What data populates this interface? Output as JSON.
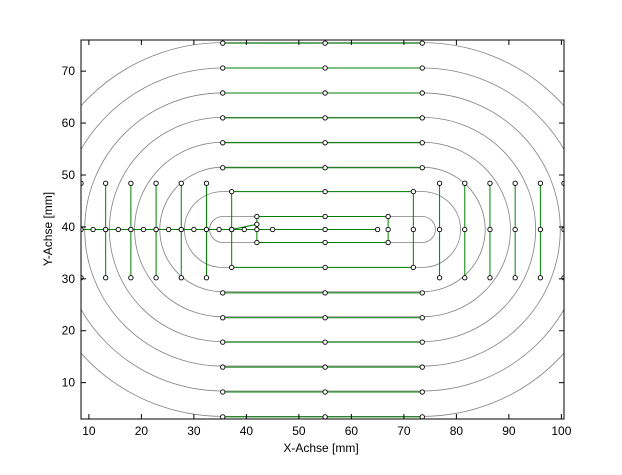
{
  "chart_data": {
    "type": "line",
    "title": "",
    "xlabel": "X-Achse [mm]",
    "ylabel": "Y-Achse [mm]",
    "xlim": [
      8.5,
      100.5
    ],
    "ylim": [
      3,
      76
    ],
    "xticks": [
      10,
      20,
      30,
      40,
      50,
      60,
      70,
      80,
      90,
      100
    ],
    "yticks": [
      10,
      20,
      30,
      40,
      50,
      60,
      70
    ],
    "grid": false,
    "legend": "none",
    "colors": {
      "contour": "#808080",
      "path": "#008000",
      "marker_edge": "#000000",
      "marker_fill": "#ffffff",
      "axes": "#000000"
    },
    "center": {
      "x": 55,
      "y": 39.5
    },
    "straight_x_range": [
      35.5,
      73.5
    ],
    "contours": [
      {
        "half_height": 2.5,
        "radius": 2.5
      },
      {
        "half_height": 7.3,
        "radius": 7.3
      },
      {
        "half_height": 12.0,
        "radius": 12.0
      },
      {
        "half_height": 16.8,
        "radius": 16.8
      },
      {
        "half_height": 21.6,
        "radius": 21.6
      },
      {
        "half_height": 26.3,
        "radius": 26.3
      },
      {
        "half_height": 31.1,
        "radius": 31.1
      },
      {
        "half_height": 36.0,
        "radius": 36.0
      }
    ],
    "path_points": [
      [
        8.5,
        39.5
      ],
      [
        10.8,
        39.5
      ],
      [
        13.2,
        39.5
      ],
      [
        15.6,
        39.5
      ],
      [
        18.0,
        39.5
      ],
      [
        20.4,
        39.5
      ],
      [
        22.8,
        39.5
      ],
      [
        25.2,
        39.5
      ],
      [
        27.6,
        39.5
      ],
      [
        30.0,
        39.5
      ],
      [
        32.4,
        39.5
      ],
      [
        34.8,
        39.5
      ],
      [
        37.2,
        39.5
      ],
      [
        39.6,
        39.5
      ],
      [
        42.0,
        39.5
      ],
      [
        42.0,
        37.0
      ],
      [
        55.0,
        37.0
      ],
      [
        67.0,
        37.0
      ],
      [
        67.0,
        39.5
      ],
      [
        67.0,
        42.0
      ],
      [
        55.0,
        42.0
      ],
      [
        42.0,
        42.0
      ],
      [
        42.0,
        40.5
      ],
      [
        37.2,
        39.5
      ],
      [
        37.2,
        46.8
      ],
      [
        55.0,
        46.8
      ],
      [
        71.8,
        46.8
      ],
      [
        71.8,
        39.5
      ],
      [
        71.8,
        32.2
      ],
      [
        55.0,
        32.2
      ],
      [
        37.2,
        32.2
      ],
      [
        37.2,
        39.5
      ],
      [
        45.0,
        39.5
      ],
      [
        55.0,
        39.5
      ],
      [
        65.0,
        39.5
      ]
    ],
    "rings": [
      {
        "straight_y_top": 51.4,
        "straight_y_bottom": 27.3,
        "side_x": [
          32.4,
          76.8
        ]
      },
      {
        "straight_y_top": 56.2,
        "straight_y_bottom": 22.5,
        "side_x": [
          27.6,
          81.6
        ]
      },
      {
        "straight_y_top": 61.0,
        "straight_y_bottom": 17.8,
        "side_x": [
          22.8,
          86.4
        ]
      },
      {
        "straight_y_top": 65.8,
        "straight_y_bottom": 13.0,
        "side_x": [
          18.0,
          91.2
        ]
      },
      {
        "straight_y_top": 70.6,
        "straight_y_bottom": 8.2,
        "side_x": [
          13.2,
          96.0
        ]
      },
      {
        "straight_y_top": 75.4,
        "straight_y_bottom": 3.4,
        "side_x": [
          8.5,
          100.5
        ]
      }
    ],
    "ring_side_y": [
      30.2,
      39.5,
      48.4
    ],
    "ring_top_x": [
      35.5,
      55.0,
      73.5
    ]
  }
}
